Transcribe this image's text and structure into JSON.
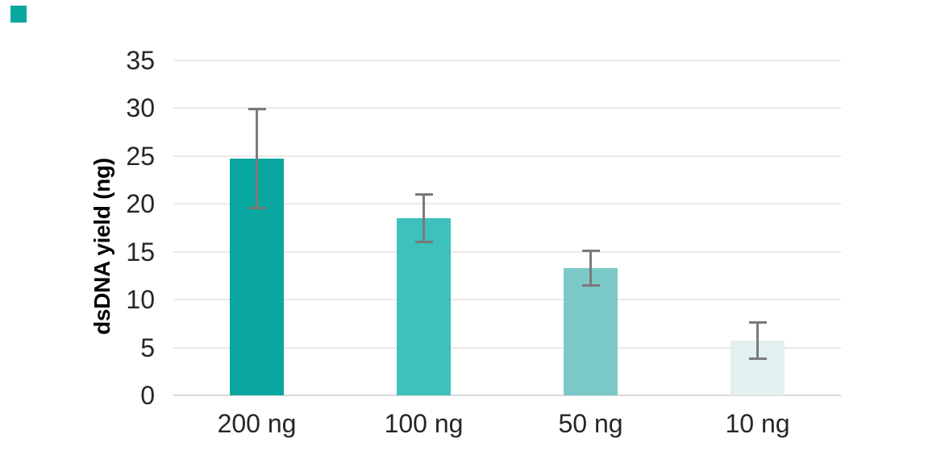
{
  "ui": {
    "background_color": "#ffffff",
    "brand_square_color": "#0AA6A0",
    "text_color": "#262626",
    "gridline_color": "#EAEAEA",
    "axis_line_color": "#D8D8D8"
  },
  "chart_data": {
    "type": "bar",
    "title": "",
    "categories": [
      "200 ng",
      "100 ng",
      "50 ng",
      "10 ng"
    ],
    "values": [
      24.7,
      18.5,
      13.3,
      5.7
    ],
    "error_bars": [
      5.3,
      2.6,
      1.9,
      2.0
    ],
    "bar_colors": [
      "#0AA6A0",
      "#3EC0BD",
      "#7BC9C7",
      "#E3F0F0"
    ],
    "error_bar_color": "#7A7A7A",
    "xlabel": "",
    "ylabel": "dsDNA yield (ng)",
    "ylim": [
      0,
      35
    ],
    "yticks": [
      0,
      5,
      10,
      15,
      20,
      25,
      30,
      35
    ],
    "grid": "horizontal gridlines only",
    "legend": "none"
  }
}
